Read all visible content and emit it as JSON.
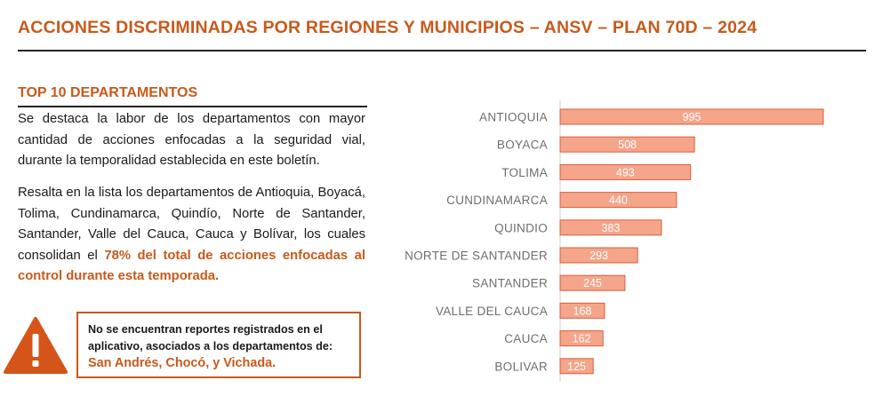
{
  "header": {
    "title": "ACCIONES DISCRIMINADAS POR REGIONES Y MUNICIPIOS – ANSV – PLAN 70D – 2024"
  },
  "section": {
    "title": "TOP 10 DEPARTAMENTOS",
    "para1": "Se destaca la labor de los departamentos con mayor cantidad de acciones enfocadas a la seguridad vial, durante la temporalidad establecida en este boletín.",
    "para2_before": "Resalta en la lista los departamentos de Antioquia, Boyacá, Tolima, Cundinamarca, Quindío, Norte de Santander, Santander, Valle del Cauca, Cauca y Bolívar, los cuales consolidan el ",
    "para2_highlight": "78% del total de acciones enfocadas al control durante esta temporada."
  },
  "note": {
    "text": "No se encuentran reportes registrados en el aplicativo, asociados a los departamentos de: ",
    "places": "San Andrés, Chocó, y Vichada."
  },
  "colors": {
    "accent": "#c75a1c",
    "bar_fill": "#f4a58a",
    "bar_stroke": "#d9603b",
    "warning_icon": "#d4541a"
  },
  "icons": {
    "warning": "warning-triangle-icon"
  },
  "chart_data": {
    "type": "bar",
    "orientation": "horizontal",
    "categories": [
      "ANTIOQUIA",
      "BOYACA",
      "TOLIMA",
      "CUNDINAMARCA",
      "QUINDIO",
      "NORTE DE SANTANDER",
      "SANTANDER",
      "VALLE DEL CAUCA",
      "CAUCA",
      "BOLIVAR"
    ],
    "values": [
      995,
      508,
      493,
      440,
      383,
      293,
      245,
      168,
      162,
      125
    ],
    "xlim": [
      0,
      995
    ],
    "data_labels": true,
    "grid": false,
    "title": "",
    "xlabel": "",
    "ylabel": ""
  }
}
